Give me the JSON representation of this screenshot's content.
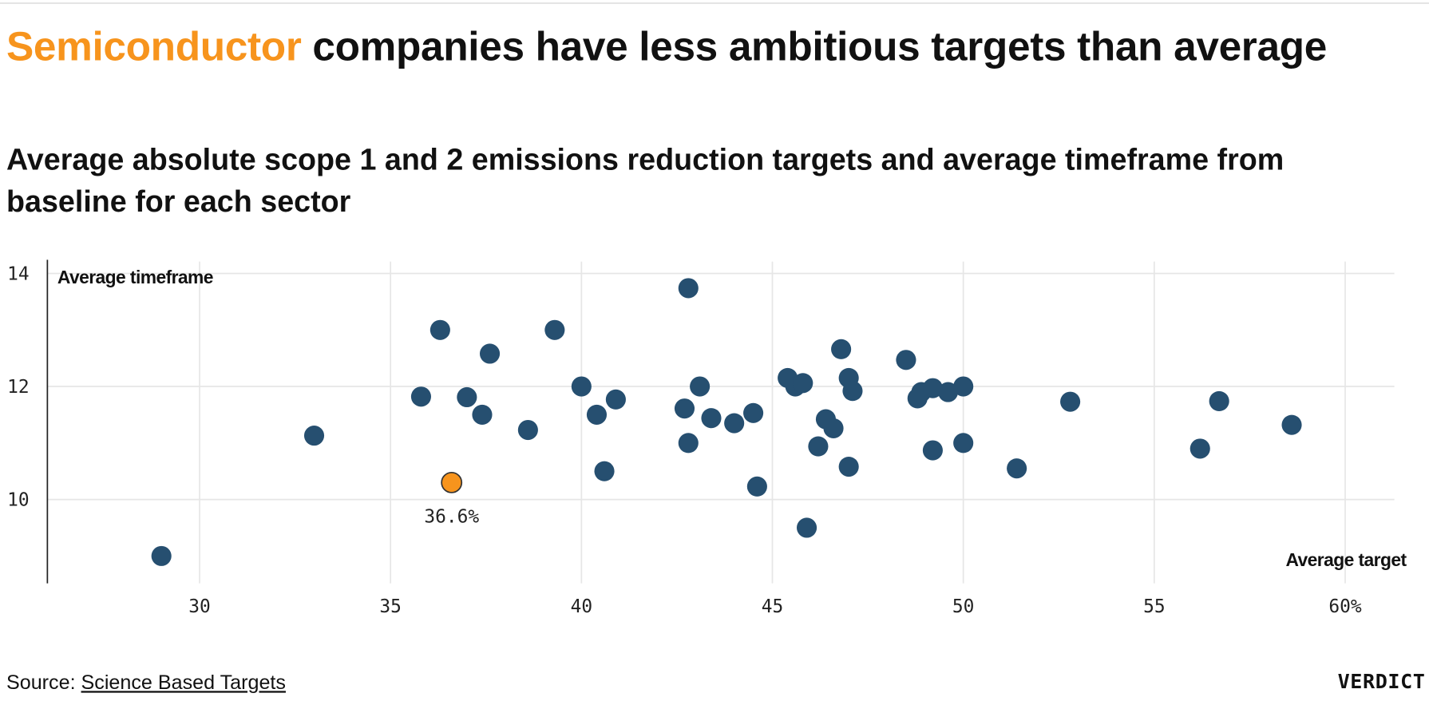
{
  "header": {
    "title_highlight": "Semiconductor",
    "title_rest": " companies have less ambitious targets than average",
    "subtitle": "Average absolute scope 1 and 2 emissions reduction targets and average timeframe from baseline for each sector"
  },
  "footer": {
    "source_label": "Source: ",
    "source_link": "Science Based Targets",
    "brand": "VERDICT"
  },
  "colors": {
    "highlight": "#f7941d",
    "points": "#264f70",
    "grid": "#e6e6e6",
    "highlight_title": "#f7941d"
  },
  "chart_data": {
    "type": "scatter",
    "xlabel": "Average target",
    "ylabel": "Average timeframe",
    "xlim": [
      26,
      61.3
    ],
    "ylim": [
      8.5,
      14.25
    ],
    "x_ticks": [
      {
        "v": 30,
        "label": "30"
      },
      {
        "v": 35,
        "label": "35"
      },
      {
        "v": 40,
        "label": "40"
      },
      {
        "v": 45,
        "label": "45"
      },
      {
        "v": 50,
        "label": "50"
      },
      {
        "v": 55,
        "label": "55"
      },
      {
        "v": 60,
        "label": "60%"
      }
    ],
    "y_ticks": [
      {
        "v": 10,
        "label": "10"
      },
      {
        "v": 12,
        "label": "12"
      },
      {
        "v": 14,
        "label": "14"
      }
    ],
    "grid": true,
    "points": [
      [
        29.0,
        9.0
      ],
      [
        33.0,
        11.13
      ],
      [
        35.8,
        11.82
      ],
      [
        36.3,
        13.0
      ],
      [
        37.0,
        11.81
      ],
      [
        37.4,
        11.5
      ],
      [
        37.6,
        12.58
      ],
      [
        38.6,
        11.23
      ],
      [
        39.3,
        13.0
      ],
      [
        40.0,
        12.0
      ],
      [
        40.4,
        11.5
      ],
      [
        40.6,
        10.5
      ],
      [
        40.9,
        11.77
      ],
      [
        42.7,
        11.61
      ],
      [
        42.8,
        13.74
      ],
      [
        42.8,
        11.0
      ],
      [
        43.1,
        12.0
      ],
      [
        43.4,
        11.44
      ],
      [
        44.0,
        11.35
      ],
      [
        44.5,
        11.53
      ],
      [
        44.6,
        10.23
      ],
      [
        45.4,
        12.15
      ],
      [
        45.6,
        12.0
      ],
      [
        45.8,
        12.06
      ],
      [
        45.9,
        9.5
      ],
      [
        46.2,
        10.94
      ],
      [
        46.4,
        11.42
      ],
      [
        46.6,
        11.26
      ],
      [
        46.8,
        12.66
      ],
      [
        47.0,
        12.15
      ],
      [
        47.0,
        10.58
      ],
      [
        47.1,
        11.92
      ],
      [
        48.5,
        12.47
      ],
      [
        48.8,
        11.79
      ],
      [
        48.9,
        11.9
      ],
      [
        49.2,
        11.97
      ],
      [
        49.2,
        10.87
      ],
      [
        49.6,
        11.9
      ],
      [
        50.0,
        12.0
      ],
      [
        50.0,
        11.0
      ],
      [
        51.4,
        10.55
      ],
      [
        52.8,
        11.73
      ],
      [
        56.2,
        10.9
      ],
      [
        56.7,
        11.74
      ],
      [
        58.6,
        11.32
      ]
    ],
    "highlight": {
      "name": "Semiconductor",
      "x": 36.6,
      "y": 10.3,
      "label": "36.6%"
    }
  }
}
